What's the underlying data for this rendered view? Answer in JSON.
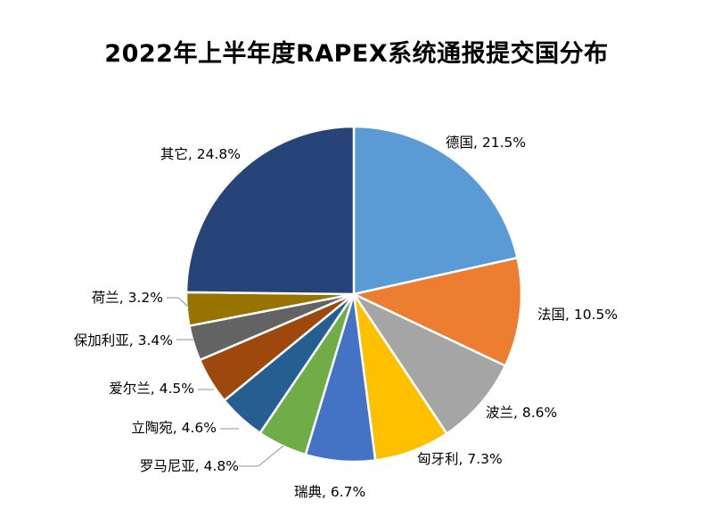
{
  "chart_data": {
    "type": "pie",
    "title": "2022年上半年度RAPEX系统通报提交国分布",
    "slices": [
      {
        "label": "德国",
        "value": 21.5,
        "display": "德国, 21.5%",
        "color": "#5B9BD5"
      },
      {
        "label": "法国",
        "value": 10.5,
        "display": "法国, 10.5%",
        "color": "#ED7D31"
      },
      {
        "label": "波兰",
        "value": 8.6,
        "display": "波兰, 8.6%",
        "color": "#A5A5A5"
      },
      {
        "label": "匈牙利",
        "value": 7.3,
        "display": "匈牙利, 7.3%",
        "color": "#FFC000"
      },
      {
        "label": "瑞典",
        "value": 6.7,
        "display": "瑞典, 6.7%",
        "color": "#4472C4"
      },
      {
        "label": "罗马尼亚",
        "value": 4.8,
        "display": "罗马尼亚, 4.8%",
        "color": "#70AD47"
      },
      {
        "label": "立陶宛",
        "value": 4.6,
        "display": "立陶宛, 4.6%",
        "color": "#255E91"
      },
      {
        "label": "爱尔兰",
        "value": 4.5,
        "display": "爱尔兰, 4.5%",
        "color": "#9E480E"
      },
      {
        "label": "保加利亚",
        "value": 3.4,
        "display": "保加利亚, 3.4%",
        "color": "#636363"
      },
      {
        "label": "荷兰",
        "value": 3.2,
        "display": "荷兰, 3.2%",
        "color": "#997300"
      },
      {
        "label": "其它",
        "value": 24.8,
        "display": "其它, 24.8%",
        "color": "#264478"
      }
    ]
  }
}
